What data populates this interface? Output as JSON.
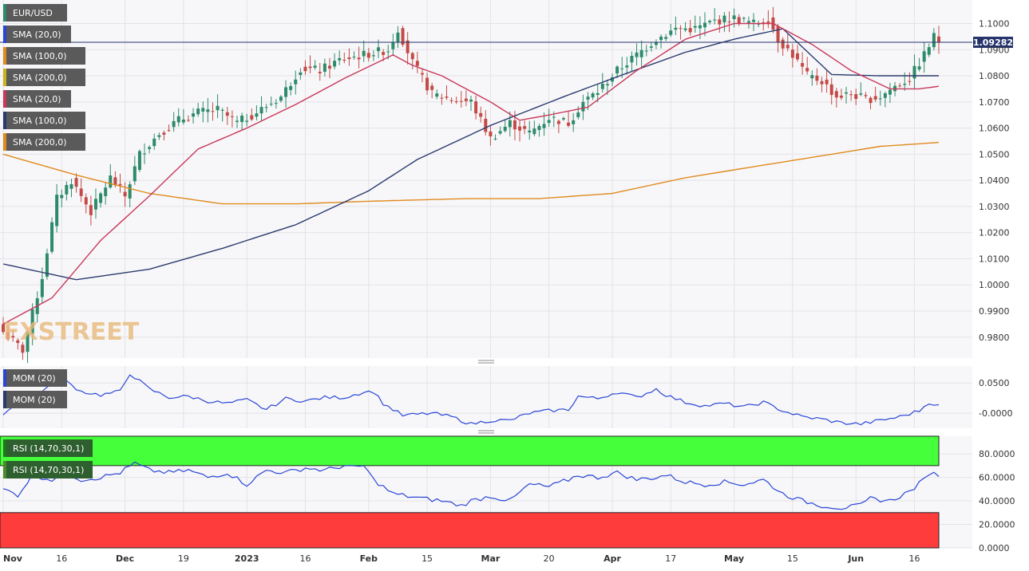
{
  "symbol": "EUR/USD",
  "current_price_label": "1.09282",
  "watermark": "FXSTREET",
  "indicator_labels": [
    "SMA (20,0)",
    "SMA (100,0)",
    "SMA (200,0)",
    "SMA (20,0)",
    "SMA (100,0)",
    "SMA (200,0)"
  ],
  "mom_labels": [
    "MOM (20)",
    "MOM (20)"
  ],
  "rsi_labels": [
    "RSI (14,70,30,1)",
    "RSI (14,70,30,1)"
  ],
  "colors": {
    "up": "#2e8b6a",
    "down": "#c44a46",
    "sma20": "#c8385a",
    "sma100": "#2b3a6e",
    "sma200": "#e08a1e",
    "mom": "#2a45d6",
    "rsi": "#2a45d6",
    "overbought": "#44ff3a",
    "oversold": "#ff3c3c",
    "price_tag": "#24336b",
    "label_bg": "#5a5a5a"
  },
  "chart_data": [
    {
      "type": "candlestick",
      "title": "EUR/USD",
      "ylim": [
        0.972,
        1.109
      ],
      "y_ticks": [
        "1.1000",
        "1.0900",
        "1.0800",
        "1.0700",
        "1.0600",
        "1.0500",
        "1.0400",
        "1.0300",
        "1.0200",
        "1.0100",
        "1.0000",
        "0.9900",
        "0.9800"
      ],
      "x_ticks": [
        "Nov",
        "16",
        "Dec",
        "19",
        "2023",
        "16",
        "Feb",
        "15",
        "Mar",
        "20",
        "Apr",
        "17",
        "May",
        "15",
        "Jun",
        "16"
      ],
      "last_price": 1.09282,
      "close_anchors": [
        [
          0,
          0.982
        ],
        [
          4,
          0.975
        ],
        [
          8,
          1.003
        ],
        [
          11,
          1.033
        ],
        [
          14,
          1.04
        ],
        [
          18,
          1.028
        ],
        [
          22,
          1.041
        ],
        [
          25,
          1.034
        ],
        [
          28,
          1.05
        ],
        [
          32,
          1.058
        ],
        [
          36,
          1.063
        ],
        [
          40,
          1.066
        ],
        [
          44,
          1.067
        ],
        [
          48,
          1.062
        ],
        [
          52,
          1.066
        ],
        [
          57,
          1.072
        ],
        [
          61,
          1.083
        ],
        [
          65,
          1.082
        ],
        [
          69,
          1.086
        ],
        [
          74,
          1.088
        ],
        [
          79,
          1.09
        ],
        [
          81,
          1.098
        ],
        [
          84,
          1.085
        ],
        [
          88,
          1.073
        ],
        [
          92,
          1.071
        ],
        [
          96,
          1.07
        ],
        [
          100,
          1.056
        ],
        [
          104,
          1.062
        ],
        [
          108,
          1.058
        ],
        [
          112,
          1.064
        ],
        [
          116,
          1.062
        ],
        [
          119,
          1.07
        ],
        [
          122,
          1.074
        ],
        [
          126,
          1.082
        ],
        [
          130,
          1.088
        ],
        [
          134,
          1.094
        ],
        [
          138,
          1.098
        ],
        [
          142,
          1.098
        ],
        [
          146,
          1.101
        ],
        [
          150,
          1.102
        ],
        [
          154,
          1.1
        ],
        [
          157,
          1.102
        ],
        [
          159,
          1.094
        ],
        [
          162,
          1.088
        ],
        [
          165,
          1.08
        ],
        [
          168,
          1.078
        ],
        [
          171,
          1.072
        ],
        [
          174,
          1.073
        ],
        [
          177,
          1.071
        ],
        [
          180,
          1.072
        ],
        [
          183,
          1.076
        ],
        [
          186,
          1.079
        ],
        [
          189,
          1.088
        ],
        [
          191,
          1.095
        ],
        [
          192,
          1.0928
        ]
      ],
      "sma20_anchors": [
        [
          0,
          0.985
        ],
        [
          10,
          0.995
        ],
        [
          20,
          1.017
        ],
        [
          30,
          1.034
        ],
        [
          40,
          1.052
        ],
        [
          50,
          1.06
        ],
        [
          60,
          1.069
        ],
        [
          70,
          1.079
        ],
        [
          80,
          1.088
        ],
        [
          84,
          1.084
        ],
        [
          90,
          1.08
        ],
        [
          100,
          1.07
        ],
        [
          106,
          1.063
        ],
        [
          112,
          1.065
        ],
        [
          120,
          1.068
        ],
        [
          130,
          1.082
        ],
        [
          140,
          1.094
        ],
        [
          150,
          1.1
        ],
        [
          158,
          1.1
        ],
        [
          166,
          1.092
        ],
        [
          174,
          1.082
        ],
        [
          182,
          1.075
        ],
        [
          188,
          1.075
        ],
        [
          192,
          1.076
        ]
      ],
      "sma100_anchors": [
        [
          0,
          1.008
        ],
        [
          15,
          1.002
        ],
        [
          30,
          1.006
        ],
        [
          45,
          1.014
        ],
        [
          60,
          1.023
        ],
        [
          75,
          1.036
        ],
        [
          85,
          1.048
        ],
        [
          100,
          1.061
        ],
        [
          115,
          1.072
        ],
        [
          128,
          1.081
        ],
        [
          140,
          1.089
        ],
        [
          150,
          1.094
        ],
        [
          160,
          1.098
        ],
        [
          170,
          1.0805
        ],
        [
          180,
          1.08
        ],
        [
          192,
          1.08
        ]
      ],
      "sma200_anchors": [
        [
          0,
          1.05
        ],
        [
          15,
          1.042
        ],
        [
          30,
          1.035
        ],
        [
          45,
          1.031
        ],
        [
          60,
          1.031
        ],
        [
          75,
          1.032
        ],
        [
          95,
          1.033
        ],
        [
          110,
          1.033
        ],
        [
          125,
          1.035
        ],
        [
          140,
          1.041
        ],
        [
          160,
          1.047
        ],
        [
          180,
          1.053
        ],
        [
          192,
          1.0545
        ]
      ]
    },
    {
      "type": "line",
      "title": "MOM (20)",
      "ylim": [
        -0.025,
        0.078
      ],
      "y_ticks": [
        "0.0500",
        "-0.0000"
      ],
      "values_anchors": [
        [
          0,
          0.0
        ],
        [
          6,
          0.03
        ],
        [
          10,
          0.046
        ],
        [
          13,
          0.052
        ],
        [
          16,
          0.036
        ],
        [
          20,
          0.03
        ],
        [
          24,
          0.036
        ],
        [
          26,
          0.066
        ],
        [
          30,
          0.04
        ],
        [
          34,
          0.026
        ],
        [
          38,
          0.028
        ],
        [
          42,
          0.02
        ],
        [
          46,
          0.016
        ],
        [
          50,
          0.022
        ],
        [
          54,
          0.006
        ],
        [
          58,
          0.024
        ],
        [
          62,
          0.02
        ],
        [
          66,
          0.026
        ],
        [
          70,
          0.026
        ],
        [
          74,
          0.035
        ],
        [
          76,
          0.036
        ],
        [
          78,
          0.016
        ],
        [
          82,
          -0.004
        ],
        [
          88,
          0.0
        ],
        [
          92,
          -0.006
        ],
        [
          96,
          -0.018
        ],
        [
          100,
          -0.012
        ],
        [
          104,
          -0.012
        ],
        [
          108,
          0.0
        ],
        [
          112,
          0.004
        ],
        [
          116,
          0.006
        ],
        [
          118,
          0.028
        ],
        [
          122,
          0.024
        ],
        [
          126,
          0.035
        ],
        [
          130,
          0.026
        ],
        [
          134,
          0.04
        ],
        [
          136,
          0.03
        ],
        [
          140,
          0.018
        ],
        [
          144,
          0.012
        ],
        [
          148,
          0.016
        ],
        [
          152,
          0.01
        ],
        [
          156,
          0.018
        ],
        [
          160,
          0.004
        ],
        [
          164,
          -0.006
        ],
        [
          168,
          -0.01
        ],
        [
          172,
          -0.016
        ],
        [
          176,
          -0.018
        ],
        [
          180,
          -0.012
        ],
        [
          184,
          -0.006
        ],
        [
          188,
          0.004
        ],
        [
          190,
          0.018
        ],
        [
          192,
          0.012
        ]
      ]
    },
    {
      "type": "line",
      "title": "RSI (14,70,30,1)",
      "ylim": [
        0,
        95
      ],
      "y_ticks": [
        "80.0000",
        "60.0000",
        "40.0000",
        "20.0000",
        "0.0000"
      ],
      "overbought": 70,
      "oversold": 30,
      "values_anchors": [
        [
          0,
          50
        ],
        [
          3,
          45
        ],
        [
          6,
          62
        ],
        [
          10,
          58
        ],
        [
          13,
          64
        ],
        [
          16,
          58
        ],
        [
          20,
          60
        ],
        [
          24,
          64
        ],
        [
          27,
          72
        ],
        [
          30,
          66
        ],
        [
          34,
          64
        ],
        [
          38,
          66
        ],
        [
          42,
          60
        ],
        [
          46,
          64
        ],
        [
          50,
          54
        ],
        [
          54,
          66
        ],
        [
          58,
          64
        ],
        [
          62,
          68
        ],
        [
          66,
          66
        ],
        [
          70,
          70
        ],
        [
          72,
          68
        ],
        [
          74,
          70
        ],
        [
          76,
          58
        ],
        [
          80,
          46
        ],
        [
          86,
          42
        ],
        [
          90,
          40
        ],
        [
          94,
          36
        ],
        [
          96,
          40
        ],
        [
          100,
          44
        ],
        [
          104,
          40
        ],
        [
          108,
          54
        ],
        [
          112,
          52
        ],
        [
          116,
          58
        ],
        [
          118,
          62
        ],
        [
          122,
          60
        ],
        [
          126,
          64
        ],
        [
          130,
          58
        ],
        [
          134,
          60
        ],
        [
          136,
          62
        ],
        [
          140,
          56
        ],
        [
          144,
          54
        ],
        [
          148,
          56
        ],
        [
          152,
          54
        ],
        [
          156,
          58
        ],
        [
          160,
          46
        ],
        [
          164,
          40
        ],
        [
          168,
          36
        ],
        [
          172,
          34
        ],
        [
          176,
          36
        ],
        [
          178,
          42
        ],
        [
          182,
          40
        ],
        [
          186,
          48
        ],
        [
          189,
          58
        ],
        [
          190,
          64
        ],
        [
          192,
          62
        ]
      ]
    }
  ]
}
